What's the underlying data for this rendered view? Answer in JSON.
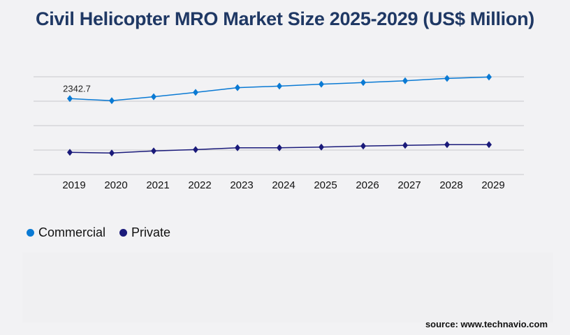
{
  "title": "Civil Helicopter MRO Market Size 2025-2029 (US$ Million)",
  "source": "source: www.technavio.com",
  "chart_data": {
    "type": "line",
    "title": "Civil Helicopter MRO Market Size 2025-2029 (US$ Million)",
    "x": [
      "2019",
      "2020",
      "2021",
      "2022",
      "2023",
      "2024",
      "2025",
      "2026",
      "2027",
      "2028",
      "2029"
    ],
    "ylim": [
      0,
      3017
    ],
    "grid": true,
    "legend_position": "bottom-left",
    "marker": "diamond",
    "series": [
      {
        "name": "Commercial",
        "color": "#0a7ad4",
        "values": [
          2342.7,
          2278,
          2399,
          2536,
          2679,
          2730,
          2787,
          2838,
          2894,
          2967,
          3010
        ]
      },
      {
        "name": "Private",
        "color": "#1a1a7a",
        "values": [
          683,
          662,
          726,
          769,
          825,
          825,
          847,
          877,
          899,
          920,
          920
        ]
      }
    ],
    "data_labels": [
      {
        "series": 0,
        "index": 0,
        "text": "2342.7"
      }
    ]
  }
}
